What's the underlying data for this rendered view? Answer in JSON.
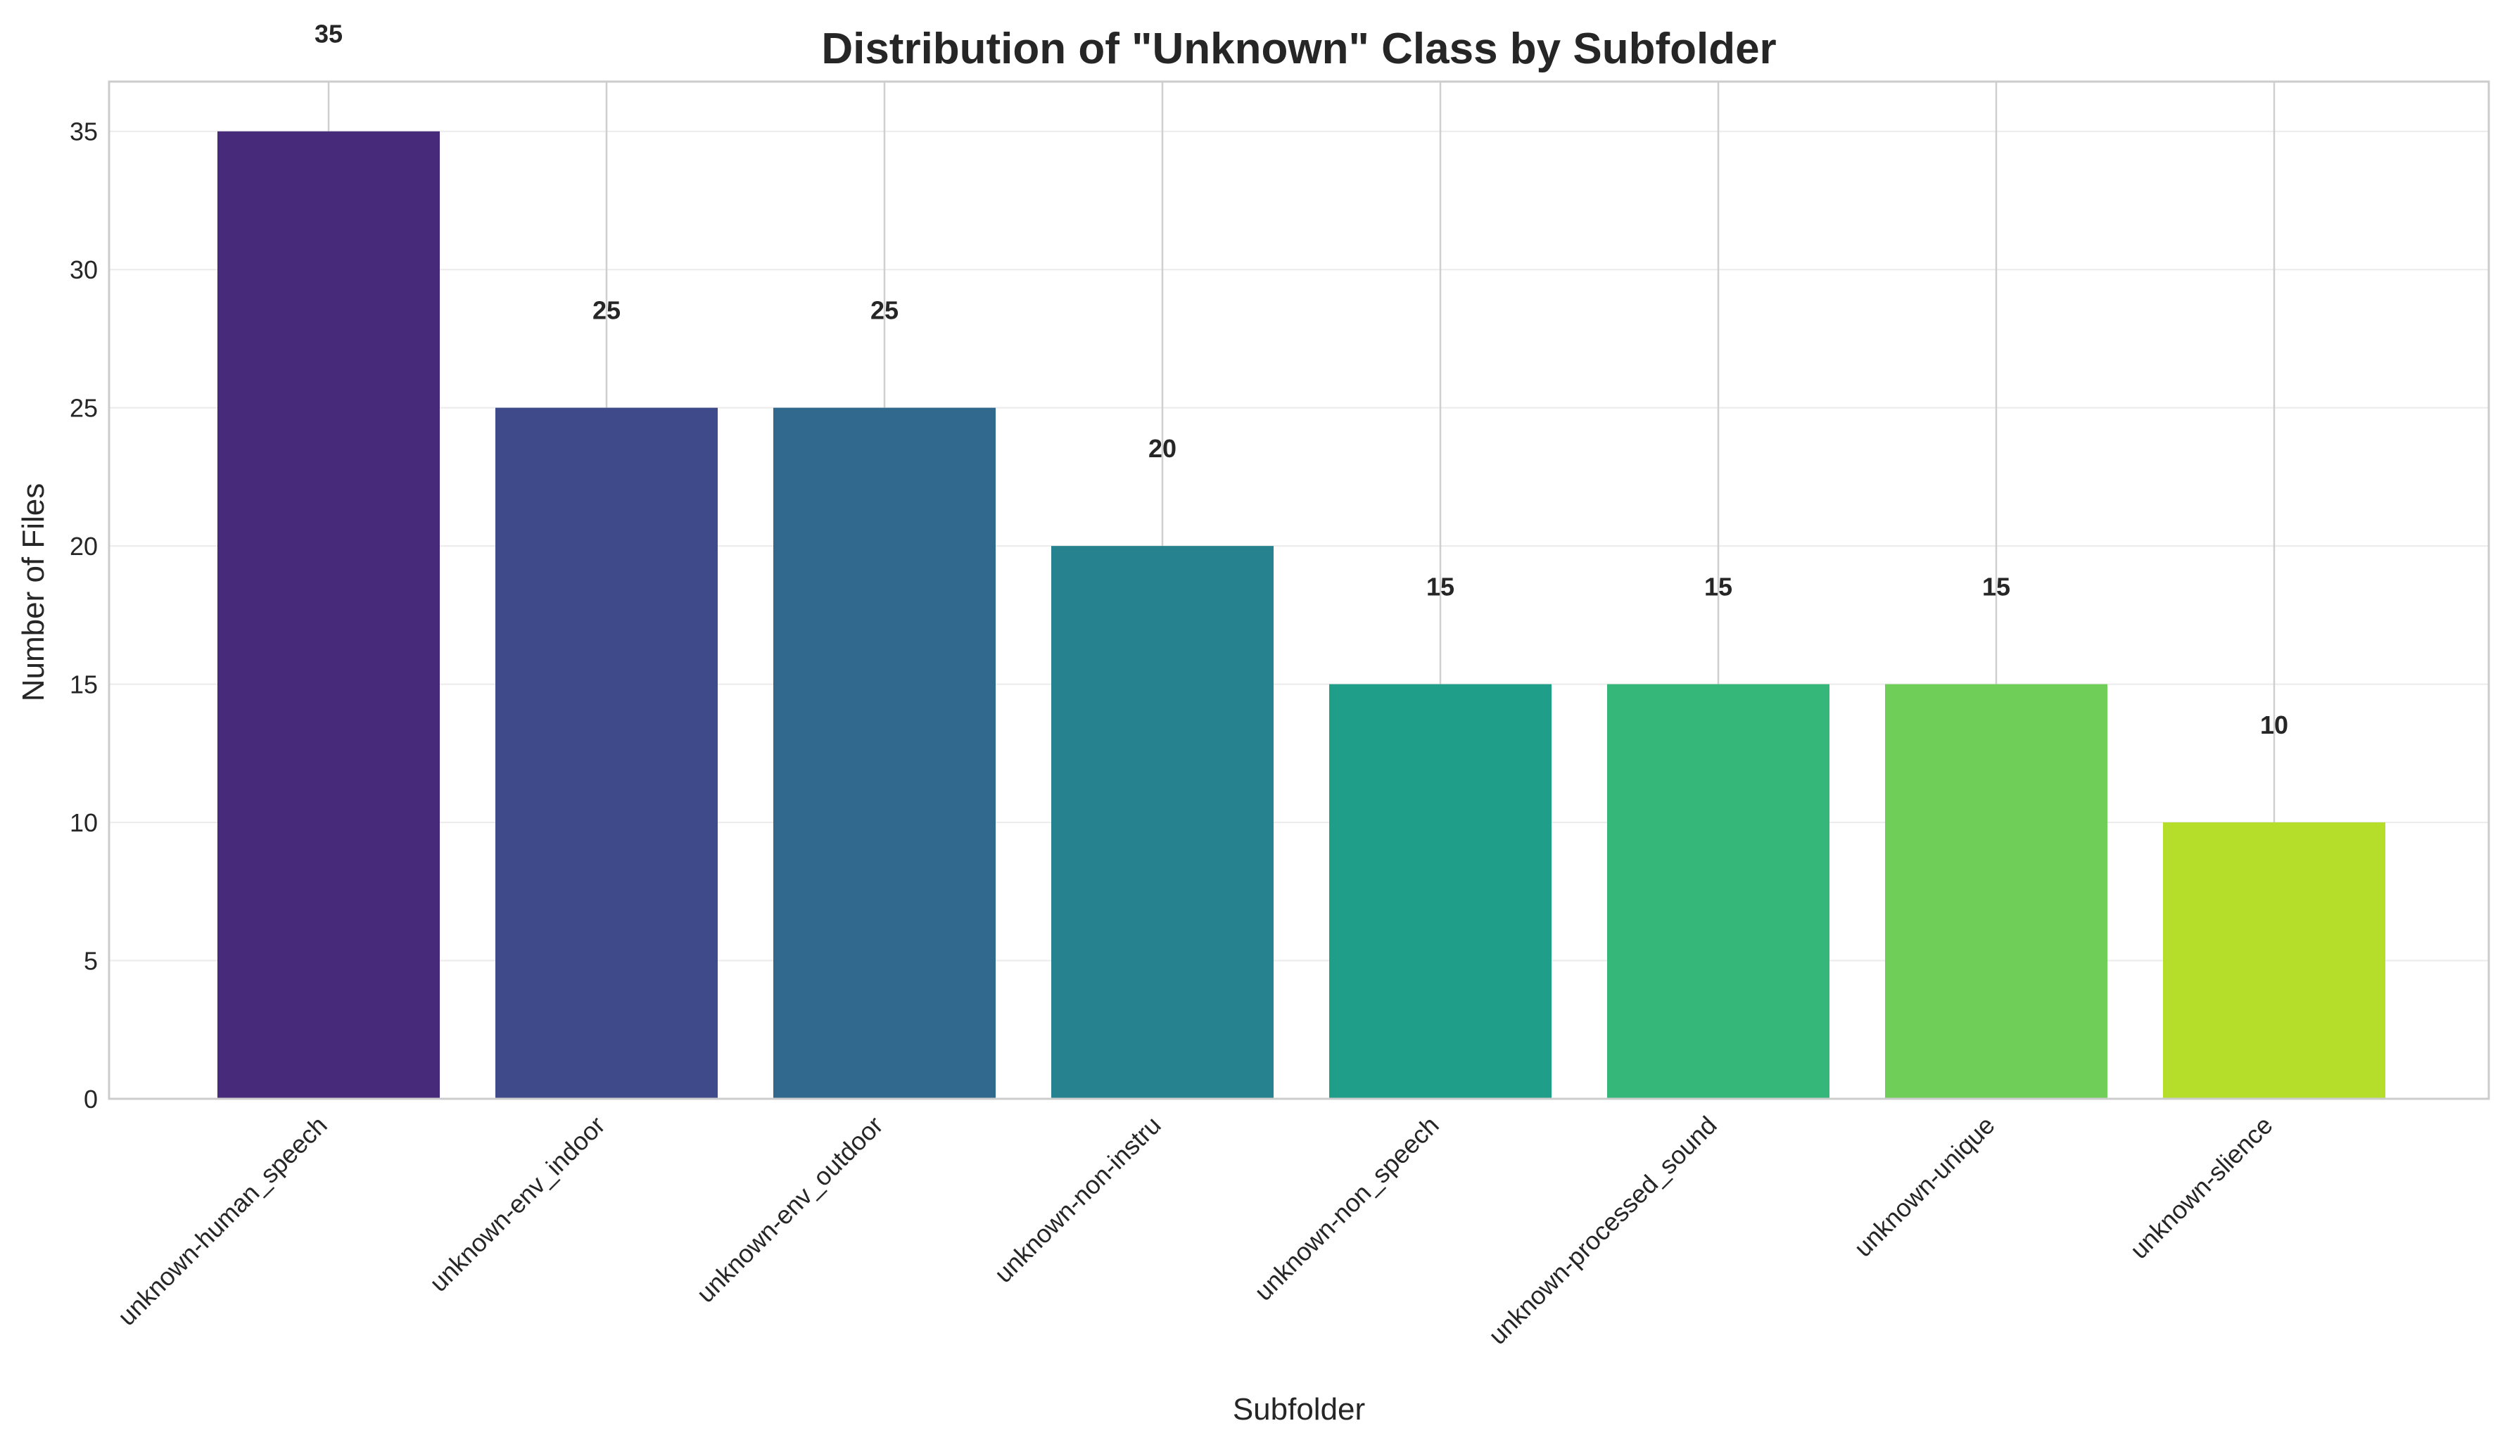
{
  "chart_data": {
    "type": "bar",
    "title": "Distribution of \"Unknown\" Class by Subfolder",
    "xlabel": "Subfolder",
    "ylabel": "Number of Files",
    "categories": [
      "unknown-human_speech",
      "unknown-env_indoor",
      "unknown-env_outdoor",
      "unknown-non-instru",
      "unknown-non_speech",
      "unknown-processed_sound",
      "unknown-unique",
      "unknown-slience"
    ],
    "values": [
      35,
      25,
      25,
      20,
      15,
      15,
      15,
      10
    ],
    "value_labels": [
      "35",
      "25",
      "25",
      "20",
      "15",
      "15",
      "15",
      "10"
    ],
    "colors": [
      "#472a7a",
      "#3e4a89",
      "#31688e",
      "#26828e",
      "#1f9e89",
      "#35b779",
      "#6ece58",
      "#b5de2b"
    ],
    "yticks": [
      0,
      5,
      10,
      15,
      20,
      25,
      30,
      35
    ],
    "ytick_labels": [
      "0",
      "5",
      "10",
      "15",
      "20",
      "25",
      "30",
      "35"
    ],
    "ylim": [
      0,
      36.8
    ],
    "grid": true,
    "legend": "none"
  }
}
